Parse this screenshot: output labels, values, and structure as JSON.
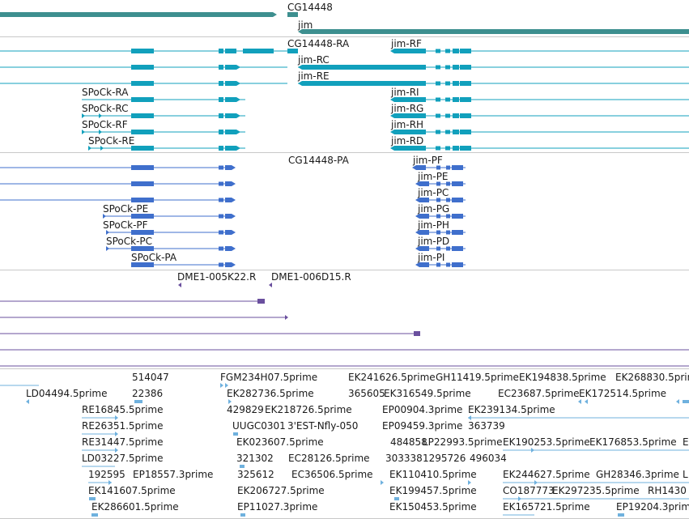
{
  "colors": {
    "gene": "#3d8f8f",
    "mrna": "#11a0bc",
    "protein": "#3f6fcc",
    "clone": "#6a4f9e",
    "est": "#6fb1de",
    "separator": "#c8c8c8"
  },
  "tracks": {
    "gene": {
      "labels": [
        "CG14448",
        "jim"
      ]
    },
    "mrna": {
      "labels": [
        "CG14448-RA",
        "jim-RF",
        "jim-RC",
        "jim-RE",
        "SPoCk-RA",
        "jim-RI",
        "SPoCk-RC",
        "jim-RG",
        "SPoCk-RF",
        "jim-RH",
        "SPoCk-RE",
        "jim-RD"
      ]
    },
    "protein": {
      "labels": [
        "CG14448-PA",
        "jim-PF",
        "jim-PE",
        "jim-PC",
        "SPoCk-PE",
        "jim-PG",
        "SPoCk-PF",
        "jim-PH",
        "SPoCk-PC",
        "jim-PD",
        "SPoCk-PA",
        "jim-PI"
      ]
    },
    "clone": {
      "labels": [
        "DME1-005K22.R",
        "DME1-006D15.R"
      ]
    },
    "est": {
      "labels": [
        "514047",
        "FGM234H07.5prime",
        "EK241626.5prime",
        "GH11419.5prime",
        "EK194838.5prime",
        "EK268830.5prime",
        "LD04494.5prime",
        "22386",
        "EK282736.5prime",
        "365605",
        "EK316549.5prime",
        "EC23687.5prime",
        "EK17251",
        "4.5prime",
        "RE16845.5prime",
        "429829",
        "EK218726.5prime",
        "EP00904.3prime",
        "EK239134.5prime",
        "RE26351.5prime",
        "UUGC0301",
        "3'EST-Nfly-050",
        "EP09459.3prime",
        "363739",
        "RE31447.5prime",
        "EK023607.5prime",
        "484858",
        "LP22993.5prime",
        "EK190253.5prime",
        "EK176853.5prime",
        "E",
        "LD03227.5prime",
        "321302",
        "EC28126.5prime",
        "303338",
        "1295726",
        "496034",
        "192595",
        "EP18557.3prime",
        "325612",
        "EC36506.5prime",
        "EK110410.5prime",
        "EK244627.5prime",
        "GH28346.3prime",
        "L",
        "EK141607.5prime",
        "EK206727.5prime",
        "EK199457.5prime",
        "CO187773",
        "EK297235.5prime",
        "RH1430",
        "EK286601.5prime",
        "EP11027.3prime",
        "EK150453.5prime",
        "EK165721.5prime",
        "EP19204.3prime"
      ]
    }
  }
}
